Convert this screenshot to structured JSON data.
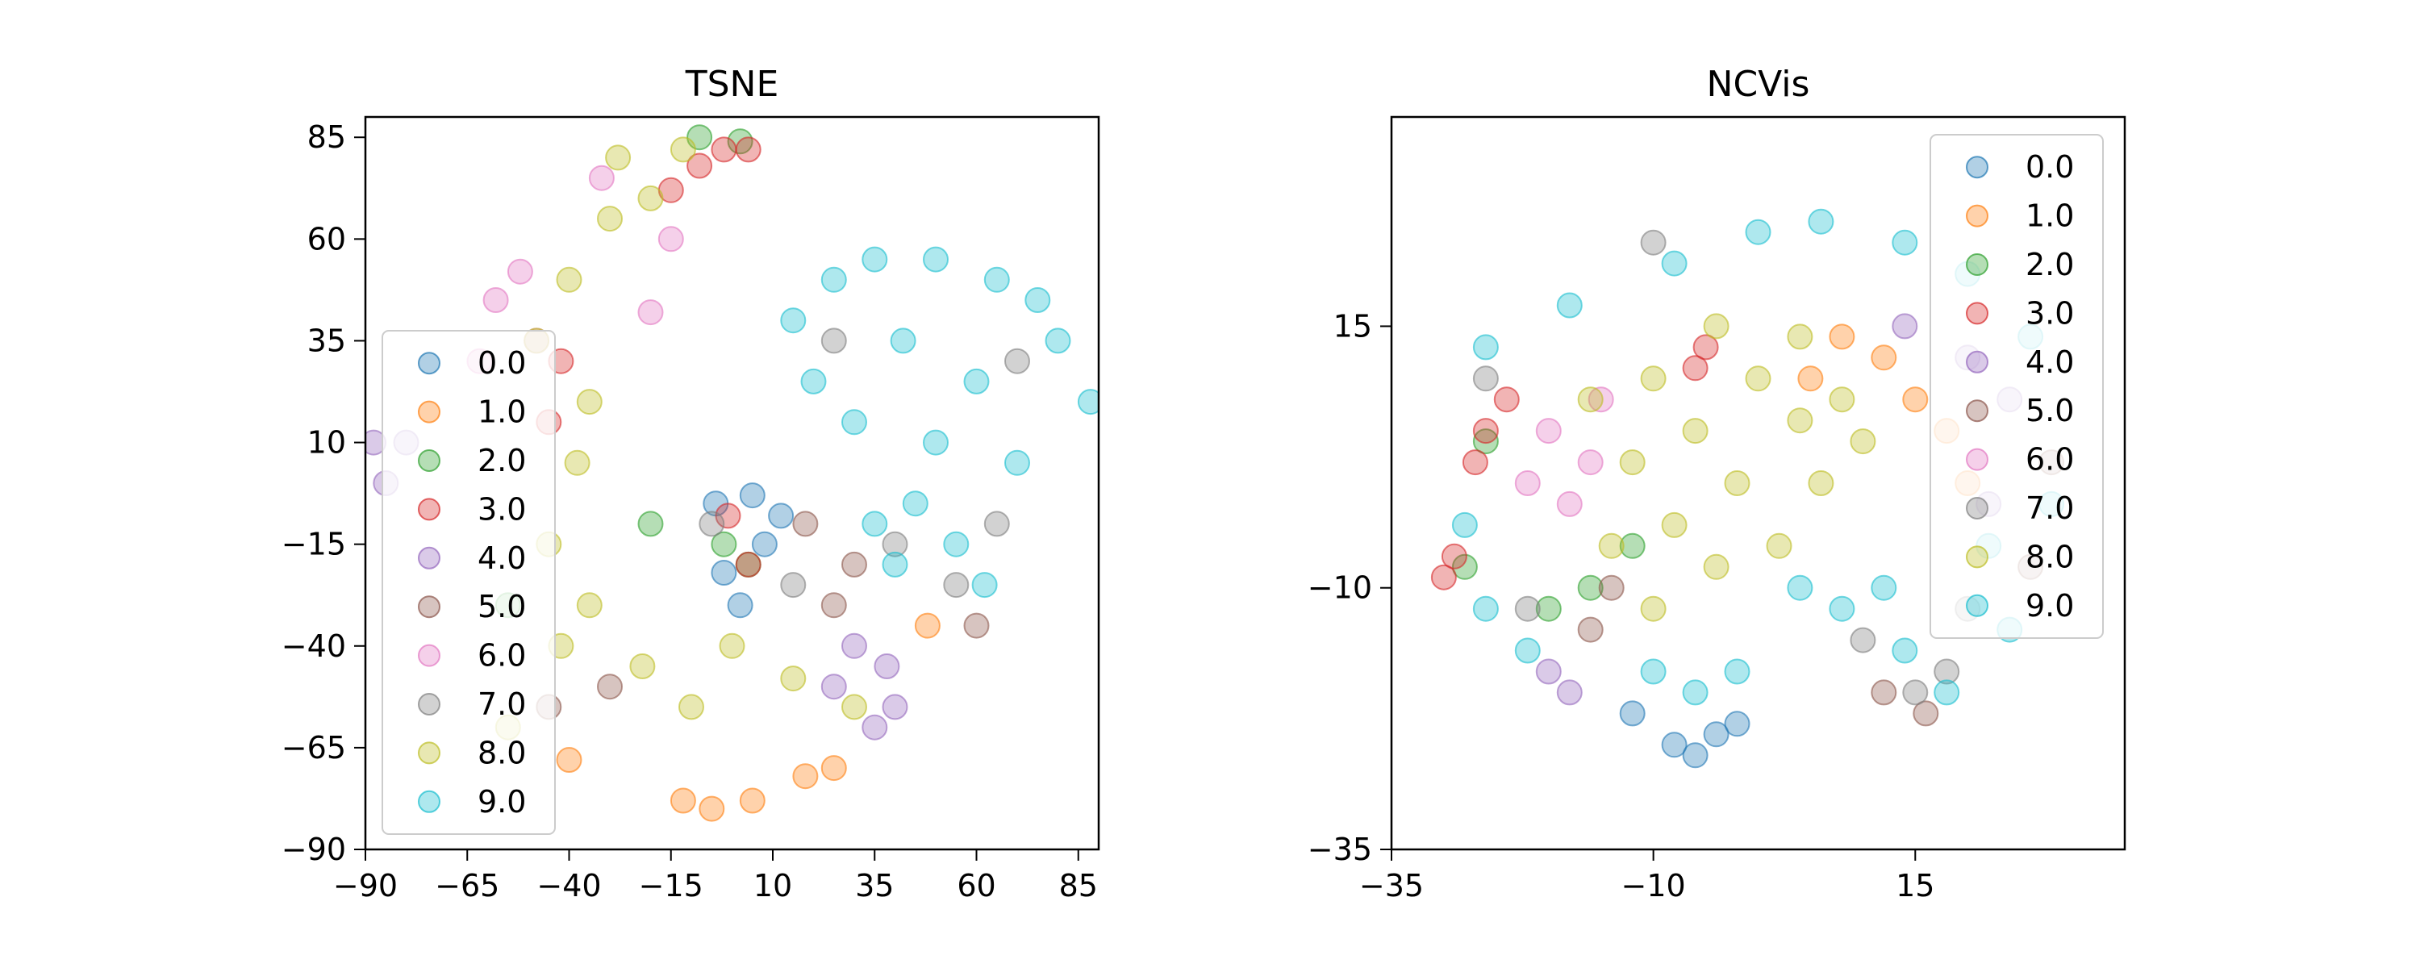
{
  "chart_data": [
    {
      "type": "scatter",
      "title": "TSNE",
      "xlim": [
        -90,
        90
      ],
      "ylim": [
        -90,
        90
      ],
      "xticks": [
        -90,
        -65,
        -40,
        -15,
        10,
        35,
        60,
        85
      ],
      "yticks": [
        -90,
        -65,
        -40,
        -15,
        10,
        35,
        60,
        85
      ],
      "xtick_labels": [
        "−90",
        "−65",
        "−40",
        "−15",
        "10",
        "35",
        "60",
        "85"
      ],
      "ytick_labels": [
        "−90",
        "−65",
        "−40",
        "−15",
        "10",
        "35",
        "60",
        "85"
      ],
      "grid": false,
      "legend_position": "center-left",
      "legend": [
        "0.0",
        "1.0",
        "2.0",
        "3.0",
        "4.0",
        "5.0",
        "6.0",
        "7.0",
        "8.0",
        "9.0"
      ],
      "series": [
        {
          "name": "0.0",
          "color": "#1f77b4",
          "points": [
            [
              -4,
              -5
            ],
            [
              8,
              -15
            ],
            [
              2,
              -30
            ],
            [
              5,
              -3
            ],
            [
              -2,
              -22
            ],
            [
              12,
              -8
            ]
          ]
        },
        {
          "name": "1.0",
          "color": "#ff7f0e",
          "points": [
            [
              -5,
              -80
            ],
            [
              5,
              -78
            ],
            [
              -12,
              -78
            ],
            [
              18,
              -72
            ],
            [
              -40,
              -68
            ],
            [
              25,
              -70
            ],
            [
              48,
              -35
            ]
          ]
        },
        {
          "name": "2.0",
          "color": "#2ca02c",
          "points": [
            [
              -8,
              85
            ],
            [
              2,
              84
            ],
            [
              -2,
              -15
            ],
            [
              4,
              -20
            ],
            [
              -20,
              -10
            ],
            [
              -55,
              -30
            ]
          ]
        },
        {
          "name": "3.0",
          "color": "#d62728",
          "points": [
            [
              -8,
              78
            ],
            [
              -2,
              82
            ],
            [
              4,
              82
            ],
            [
              -15,
              72
            ],
            [
              4,
              -20
            ],
            [
              -1,
              -8
            ],
            [
              -42,
              30
            ],
            [
              -45,
              15
            ]
          ]
        },
        {
          "name": "4.0",
          "color": "#9467bd",
          "points": [
            [
              30,
              -40
            ],
            [
              38,
              -45
            ],
            [
              35,
              -60
            ],
            [
              25,
              -50
            ],
            [
              -88,
              10
            ],
            [
              -80,
              10
            ],
            [
              -85,
              0
            ],
            [
              40,
              -55
            ]
          ]
        },
        {
          "name": "5.0",
          "color": "#8c564b",
          "points": [
            [
              -45,
              -55
            ],
            [
              25,
              -30
            ],
            [
              30,
              -20
            ],
            [
              18,
              -10
            ],
            [
              60,
              -35
            ],
            [
              -30,
              -50
            ]
          ]
        },
        {
          "name": "6.0",
          "color": "#e377c2",
          "points": [
            [
              -58,
              45
            ],
            [
              -62,
              30
            ],
            [
              -52,
              52
            ],
            [
              -48,
              35
            ],
            [
              -32,
              75
            ],
            [
              -15,
              60
            ],
            [
              -20,
              42
            ]
          ]
        },
        {
          "name": "7.0",
          "color": "#7f7f7f",
          "points": [
            [
              40,
              -15
            ],
            [
              55,
              -25
            ],
            [
              65,
              -10
            ],
            [
              25,
              35
            ],
            [
              70,
              30
            ],
            [
              -5,
              -10
            ],
            [
              15,
              -25
            ]
          ]
        },
        {
          "name": "8.0",
          "color": "#bcbd22",
          "points": [
            [
              -48,
              35
            ],
            [
              -40,
              50
            ],
            [
              -35,
              20
            ],
            [
              -30,
              65
            ],
            [
              -38,
              5
            ],
            [
              -45,
              -15
            ],
            [
              -35,
              -30
            ],
            [
              -22,
              -45
            ],
            [
              -10,
              -55
            ],
            [
              0,
              -40
            ],
            [
              15,
              -48
            ],
            [
              -28,
              80
            ],
            [
              -20,
              70
            ],
            [
              -12,
              82
            ],
            [
              -55,
              -60
            ],
            [
              30,
              -55
            ],
            [
              -42,
              -40
            ]
          ]
        },
        {
          "name": "9.0",
          "color": "#17becf",
          "points": [
            [
              35,
              55
            ],
            [
              25,
              50
            ],
            [
              15,
              40
            ],
            [
              50,
              55
            ],
            [
              65,
              50
            ],
            [
              80,
              35
            ],
            [
              88,
              20
            ],
            [
              75,
              45
            ],
            [
              60,
              25
            ],
            [
              50,
              10
            ],
            [
              45,
              -5
            ],
            [
              55,
              -15
            ],
            [
              40,
              -20
            ],
            [
              70,
              5
            ],
            [
              30,
              15
            ],
            [
              20,
              25
            ],
            [
              62,
              -25
            ],
            [
              35,
              -10
            ],
            [
              42,
              35
            ]
          ]
        }
      ]
    },
    {
      "type": "scatter",
      "title": "NCVis",
      "xlim": [
        -35,
        35
      ],
      "ylim": [
        -35,
        35
      ],
      "xticks": [
        -35,
        -10,
        15
      ],
      "yticks": [
        -35,
        -10,
        15
      ],
      "xtick_labels": [
        "−35",
        "−10",
        "15"
      ],
      "ytick_labels": [
        "−35",
        "−10",
        "15"
      ],
      "grid": false,
      "legend_position": "top-right",
      "legend": [
        "0.0",
        "1.0",
        "2.0",
        "3.0",
        "4.0",
        "5.0",
        "6.0",
        "7.0",
        "8.0",
        "9.0"
      ],
      "series": [
        {
          "name": "0.0",
          "color": "#1f77b4",
          "points": [
            [
              -8,
              -25
            ],
            [
              -6,
              -26
            ],
            [
              -4,
              -24
            ],
            [
              -12,
              -22
            ],
            [
              -2,
              -23
            ]
          ]
        },
        {
          "name": "1.0",
          "color": "#ff7f0e",
          "points": [
            [
              12,
              12
            ],
            [
              15,
              8
            ],
            [
              18,
              5
            ],
            [
              20,
              0
            ],
            [
              5,
              10
            ],
            [
              8,
              14
            ]
          ]
        },
        {
          "name": "2.0",
          "color": "#2ca02c",
          "points": [
            [
              -28,
              -8
            ],
            [
              -20,
              -12
            ],
            [
              -16,
              -10
            ],
            [
              -26,
              4
            ],
            [
              -12,
              -6
            ]
          ]
        },
        {
          "name": "3.0",
          "color": "#d62728",
          "points": [
            [
              -30,
              -9
            ],
            [
              -29,
              -7
            ],
            [
              -26,
              5
            ],
            [
              -24,
              8
            ],
            [
              -27,
              2
            ],
            [
              -6,
              11
            ],
            [
              -5,
              13
            ]
          ]
        },
        {
          "name": "4.0",
          "color": "#9467bd",
          "points": [
            [
              14,
              15
            ],
            [
              20,
              12
            ],
            [
              24,
              8
            ],
            [
              22,
              -2
            ],
            [
              -20,
              -18
            ],
            [
              -18,
              -20
            ]
          ]
        },
        {
          "name": "5.0",
          "color": "#8c564b",
          "points": [
            [
              -16,
              -14
            ],
            [
              -14,
              -10
            ],
            [
              26,
              -8
            ],
            [
              28,
              2
            ],
            [
              12,
              -20
            ],
            [
              16,
              -22
            ]
          ]
        },
        {
          "name": "6.0",
          "color": "#e377c2",
          "points": [
            [
              -18,
              -2
            ],
            [
              -20,
              5
            ],
            [
              -15,
              8
            ],
            [
              -16,
              2
            ],
            [
              -22,
              0
            ]
          ]
        },
        {
          "name": "7.0",
          "color": "#7f7f7f",
          "points": [
            [
              15,
              -20
            ],
            [
              18,
              -18
            ],
            [
              10,
              -15
            ],
            [
              -26,
              10
            ],
            [
              20,
              -12
            ],
            [
              -22,
              -12
            ],
            [
              -10,
              23
            ]
          ]
        },
        {
          "name": "8.0",
          "color": "#bcbd22",
          "points": [
            [
              -10,
              10
            ],
            [
              -12,
              2
            ],
            [
              -8,
              -4
            ],
            [
              -14,
              -6
            ],
            [
              -6,
              5
            ],
            [
              0,
              10
            ],
            [
              4,
              6
            ],
            [
              6,
              0
            ],
            [
              2,
              -6
            ],
            [
              8,
              8
            ],
            [
              -4,
              -8
            ],
            [
              -2,
              0
            ],
            [
              -16,
              8
            ],
            [
              -10,
              -12
            ],
            [
              4,
              14
            ],
            [
              -4,
              15
            ],
            [
              10,
              4
            ]
          ]
        },
        {
          "name": "9.0",
          "color": "#17becf",
          "points": [
            [
              0,
              24
            ],
            [
              -8,
              21
            ],
            [
              -18,
              17
            ],
            [
              -26,
              13
            ],
            [
              6,
              25
            ],
            [
              14,
              23
            ],
            [
              20,
              20
            ],
            [
              26,
              14
            ],
            [
              28,
              -2
            ],
            [
              24,
              -14
            ],
            [
              18,
              -20
            ],
            [
              14,
              -16
            ],
            [
              8,
              -12
            ],
            [
              4,
              -10
            ],
            [
              -2,
              -18
            ],
            [
              -6,
              -20
            ],
            [
              -10,
              -18
            ],
            [
              -22,
              -16
            ],
            [
              -26,
              -12
            ],
            [
              -28,
              -4
            ],
            [
              22,
              -6
            ],
            [
              12,
              -10
            ]
          ]
        }
      ]
    }
  ]
}
